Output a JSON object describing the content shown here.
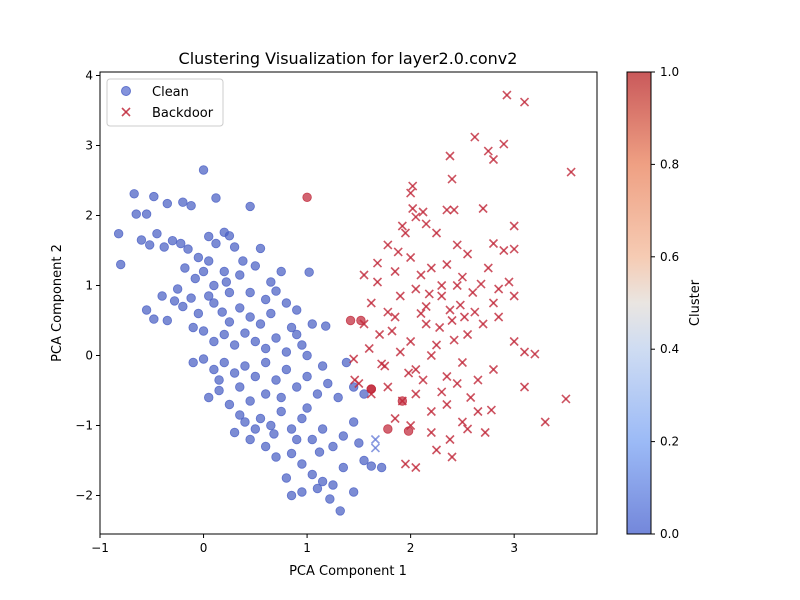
{
  "chart_data": {
    "type": "scatter",
    "title": "Clustering Visualization for layer2.0.conv2",
    "xlabel": "PCA Component 1",
    "ylabel": "PCA Component 2",
    "xlim": [
      -1.0,
      3.8
    ],
    "ylim": [
      -2.55,
      4.05
    ],
    "xticks": [
      -1,
      0,
      1,
      2,
      3
    ],
    "yticks": [
      -2,
      -1,
      0,
      1,
      2,
      3,
      4
    ],
    "grid": false,
    "legend": {
      "position": "top-left",
      "entries": [
        "Clean",
        "Backdoor"
      ]
    },
    "colorbar": {
      "label": "Cluster",
      "range": [
        0,
        1
      ],
      "ticks": [
        "0.0",
        "0.2",
        "0.4",
        "0.6",
        "0.8",
        "1.0"
      ],
      "colormap": "coolwarm"
    },
    "series": [
      {
        "name": "Clean",
        "marker": "circle",
        "points": [
          [
            -0.82,
            1.74
          ],
          [
            -0.8,
            1.3
          ],
          [
            -0.67,
            2.31
          ],
          [
            -0.65,
            2.02
          ],
          [
            -0.55,
            2.02
          ],
          [
            -0.48,
            2.27
          ],
          [
            -0.35,
            2.17
          ],
          [
            -0.2,
            2.19
          ],
          [
            -0.12,
            2.14
          ],
          [
            0.0,
            2.65
          ],
          [
            0.12,
            2.25
          ],
          [
            -0.6,
            1.65
          ],
          [
            -0.52,
            1.58
          ],
          [
            -0.45,
            1.74
          ],
          [
            -0.38,
            1.55
          ],
          [
            -0.3,
            1.64
          ],
          [
            -0.22,
            1.6
          ],
          [
            -0.15,
            1.52
          ],
          [
            0.05,
            1.7
          ],
          [
            0.12,
            1.6
          ],
          [
            0.2,
            1.76
          ],
          [
            0.25,
            1.71
          ],
          [
            0.45,
            2.13
          ],
          [
            0.55,
            1.53
          ],
          [
            0.3,
            1.55
          ],
          [
            0.38,
            1.35
          ],
          [
            -0.05,
            1.4
          ],
          [
            0.05,
            1.35
          ],
          [
            -0.18,
            1.25
          ],
          [
            -0.08,
            1.1
          ],
          [
            0.0,
            1.2
          ],
          [
            0.1,
            1.0
          ],
          [
            0.22,
            1.05
          ],
          [
            0.35,
            1.15
          ],
          [
            0.5,
            1.28
          ],
          [
            0.65,
            1.05
          ],
          [
            0.75,
            1.2
          ],
          [
            1.02,
            1.19
          ],
          [
            -0.55,
            0.65
          ],
          [
            -0.48,
            0.52
          ],
          [
            -0.4,
            0.85
          ],
          [
            -0.35,
            0.5
          ],
          [
            -0.28,
            0.78
          ],
          [
            -0.2,
            0.7
          ],
          [
            -0.12,
            0.82
          ],
          [
            -0.05,
            0.6
          ],
          [
            0.05,
            0.85
          ],
          [
            0.1,
            0.75
          ],
          [
            0.18,
            0.62
          ],
          [
            0.25,
            0.48
          ],
          [
            0.35,
            0.68
          ],
          [
            0.45,
            0.55
          ],
          [
            0.6,
            0.8
          ],
          [
            0.7,
            0.92
          ],
          [
            0.8,
            0.75
          ],
          [
            0.9,
            0.65
          ],
          [
            -0.1,
            0.4
          ],
          [
            0.0,
            0.35
          ],
          [
            0.1,
            0.2
          ],
          [
            0.2,
            0.3
          ],
          [
            0.3,
            0.15
          ],
          [
            0.4,
            0.32
          ],
          [
            0.5,
            0.2
          ],
          [
            0.6,
            0.1
          ],
          [
            0.7,
            0.25
          ],
          [
            0.8,
            0.05
          ],
          [
            0.9,
            0.3
          ],
          [
            1.05,
            0.45
          ],
          [
            1.18,
            0.42
          ],
          [
            -0.1,
            -0.1
          ],
          [
            0.0,
            -0.05
          ],
          [
            0.1,
            -0.2
          ],
          [
            0.2,
            -0.1
          ],
          [
            0.3,
            -0.25
          ],
          [
            0.4,
            -0.15
          ],
          [
            0.5,
            -0.3
          ],
          [
            0.6,
            -0.1
          ],
          [
            0.7,
            -0.35
          ],
          [
            0.8,
            -0.2
          ],
          [
            0.9,
            -0.45
          ],
          [
            1.0,
            -0.3
          ],
          [
            1.1,
            -0.55
          ],
          [
            1.2,
            -0.4
          ],
          [
            1.3,
            -0.6
          ],
          [
            1.38,
            -0.1
          ],
          [
            1.45,
            -0.45
          ],
          [
            1.55,
            -0.55
          ],
          [
            0.05,
            -0.6
          ],
          [
            0.15,
            -0.5
          ],
          [
            0.25,
            -0.7
          ],
          [
            0.35,
            -0.85
          ],
          [
            0.45,
            -0.65
          ],
          [
            0.55,
            -0.9
          ],
          [
            0.65,
            -1.0
          ],
          [
            0.75,
            -0.8
          ],
          [
            0.85,
            -1.05
          ],
          [
            0.95,
            -0.9
          ],
          [
            1.05,
            -1.2
          ],
          [
            1.15,
            -1.05
          ],
          [
            1.25,
            -1.3
          ],
          [
            1.35,
            -1.15
          ],
          [
            1.45,
            -0.95
          ],
          [
            1.5,
            -1.25
          ],
          [
            0.3,
            -1.1
          ],
          [
            0.45,
            -1.2
          ],
          [
            0.6,
            -1.3
          ],
          [
            0.7,
            -1.45
          ],
          [
            0.85,
            -1.4
          ],
          [
            0.95,
            -1.55
          ],
          [
            1.05,
            -1.7
          ],
          [
            1.15,
            -1.8
          ],
          [
            1.25,
            -1.85
          ],
          [
            1.35,
            -1.6
          ],
          [
            1.45,
            -1.95
          ],
          [
            1.55,
            -1.5
          ],
          [
            0.8,
            -1.75
          ],
          [
            0.85,
            -2.0
          ],
          [
            0.95,
            -1.95
          ],
          [
            1.1,
            -1.9
          ],
          [
            1.22,
            -2.05
          ],
          [
            1.32,
            -2.22
          ],
          [
            1.62,
            -1.58
          ],
          [
            1.72,
            -1.6
          ],
          [
            0.2,
            1.2
          ],
          [
            0.25,
            0.9
          ],
          [
            0.45,
            0.9
          ],
          [
            -0.25,
            0.95
          ],
          [
            0.55,
            0.45
          ],
          [
            0.65,
            0.6
          ],
          [
            0.75,
            -0.6
          ],
          [
            0.85,
            0.4
          ],
          [
            0.95,
            0.15
          ],
          [
            0.15,
            -0.35
          ],
          [
            0.35,
            -0.45
          ],
          [
            1.0,
            0.0
          ],
          [
            1.15,
            -0.15
          ],
          [
            0.6,
            -0.55
          ],
          [
            1.0,
            -0.75
          ],
          [
            0.4,
            -0.95
          ],
          [
            0.5,
            -1.05
          ],
          [
            0.68,
            -1.12
          ],
          [
            0.9,
            -1.2
          ],
          [
            1.12,
            -1.38
          ]
        ]
      },
      {
        "name": "Backdoor",
        "marker": "x",
        "points": [
          [
            2.93,
            3.72
          ],
          [
            3.1,
            3.62
          ],
          [
            3.55,
            2.62
          ],
          [
            2.62,
            3.12
          ],
          [
            2.75,
            2.92
          ],
          [
            2.9,
            3.02
          ],
          [
            2.8,
            2.8
          ],
          [
            2.38,
            2.85
          ],
          [
            2.4,
            2.52
          ],
          [
            2.02,
            2.42
          ],
          [
            2.0,
            2.32
          ],
          [
            2.7,
            2.1
          ],
          [
            2.35,
            2.08
          ],
          [
            2.42,
            2.08
          ],
          [
            2.02,
            2.1
          ],
          [
            2.12,
            2.05
          ],
          [
            2.05,
            1.98
          ],
          [
            1.92,
            1.85
          ],
          [
            2.15,
            1.88
          ],
          [
            3.0,
            1.85
          ],
          [
            1.78,
            1.58
          ],
          [
            1.95,
            1.75
          ],
          [
            2.25,
            1.75
          ],
          [
            2.45,
            1.58
          ],
          [
            2.8,
            1.6
          ],
          [
            2.9,
            1.5
          ],
          [
            3.0,
            1.52
          ],
          [
            1.55,
            1.15
          ],
          [
            1.68,
            1.05
          ],
          [
            1.85,
            1.2
          ],
          [
            2.0,
            1.4
          ],
          [
            2.2,
            1.25
          ],
          [
            2.35,
            1.3
          ],
          [
            2.55,
            1.45
          ],
          [
            2.75,
            1.25
          ],
          [
            2.95,
            1.05
          ],
          [
            1.62,
            0.75
          ],
          [
            1.78,
            0.62
          ],
          [
            1.9,
            0.85
          ],
          [
            2.05,
            0.95
          ],
          [
            2.15,
            0.7
          ],
          [
            2.3,
            0.85
          ],
          [
            2.45,
            1.0
          ],
          [
            2.6,
            0.9
          ],
          [
            2.8,
            0.75
          ],
          [
            3.0,
            0.85
          ],
          [
            1.55,
            0.45
          ],
          [
            1.7,
            0.3
          ],
          [
            1.85,
            0.55
          ],
          [
            2.0,
            0.2
          ],
          [
            2.15,
            0.45
          ],
          [
            2.25,
            0.15
          ],
          [
            2.4,
            0.5
          ],
          [
            2.55,
            0.3
          ],
          [
            2.7,
            0.45
          ],
          [
            2.85,
            0.55
          ],
          [
            3.0,
            0.2
          ],
          [
            1.45,
            -0.05
          ],
          [
            1.6,
            0.1
          ],
          [
            1.75,
            -0.15
          ],
          [
            1.9,
            0.05
          ],
          [
            2.05,
            -0.2
          ],
          [
            2.2,
            0.0
          ],
          [
            2.35,
            -0.3
          ],
          [
            2.5,
            -0.1
          ],
          [
            2.65,
            -0.35
          ],
          [
            2.8,
            -0.2
          ],
          [
            3.1,
            0.05
          ],
          [
            3.2,
            0.02
          ],
          [
            1.5,
            -0.4
          ],
          [
            1.62,
            -0.55
          ],
          [
            1.78,
            -0.45
          ],
          [
            1.92,
            -0.65
          ],
          [
            2.05,
            -0.55
          ],
          [
            2.2,
            -0.8
          ],
          [
            2.35,
            -0.7
          ],
          [
            2.5,
            -0.95
          ],
          [
            2.65,
            -0.8
          ],
          [
            2.78,
            -0.78
          ],
          [
            3.1,
            -0.45
          ],
          [
            3.5,
            -0.62
          ],
          [
            1.85,
            -0.9
          ],
          [
            2.0,
            -1.0
          ],
          [
            2.2,
            -1.1
          ],
          [
            2.38,
            -1.2
          ],
          [
            2.55,
            -1.05
          ],
          [
            2.72,
            -1.1
          ],
          [
            3.3,
            -0.95
          ],
          [
            1.95,
            -1.55
          ],
          [
            2.05,
            -1.6
          ],
          [
            2.25,
            -1.35
          ],
          [
            2.4,
            -1.45
          ],
          [
            1.72,
            -0.12
          ],
          [
            1.82,
            0.35
          ],
          [
            2.1,
            0.6
          ],
          [
            2.28,
            0.4
          ],
          [
            2.42,
            0.22
          ],
          [
            2.62,
            0.62
          ],
          [
            2.52,
            0.55
          ],
          [
            2.48,
            0.72
          ],
          [
            2.12,
            -0.35
          ],
          [
            1.98,
            -0.25
          ],
          [
            2.3,
            -0.52
          ],
          [
            2.45,
            -0.4
          ],
          [
            2.58,
            -0.6
          ],
          [
            1.68,
            1.32
          ],
          [
            1.88,
            1.48
          ],
          [
            2.1,
            1.15
          ],
          [
            2.3,
            1.0
          ],
          [
            2.5,
            1.12
          ],
          [
            2.68,
            1.02
          ],
          [
            2.85,
            0.95
          ],
          [
            2.18,
            0.88
          ],
          [
            2.38,
            0.65
          ],
          [
            1.66,
            -1.2
          ],
          [
            1.66,
            -1.32
          ],
          [
            1.46,
            -0.35
          ]
        ]
      },
      {
        "name": "",
        "marker": "circle",
        "points": [
          [
            1.0,
            2.26
          ],
          [
            1.42,
            0.5
          ],
          [
            1.52,
            0.5
          ],
          [
            1.62,
            -0.48
          ],
          [
            1.78,
            -1.05
          ],
          [
            1.92,
            -0.65
          ],
          [
            1.98,
            -1.08
          ],
          [
            1.62,
            -0.48
          ]
        ]
      }
    ]
  }
}
